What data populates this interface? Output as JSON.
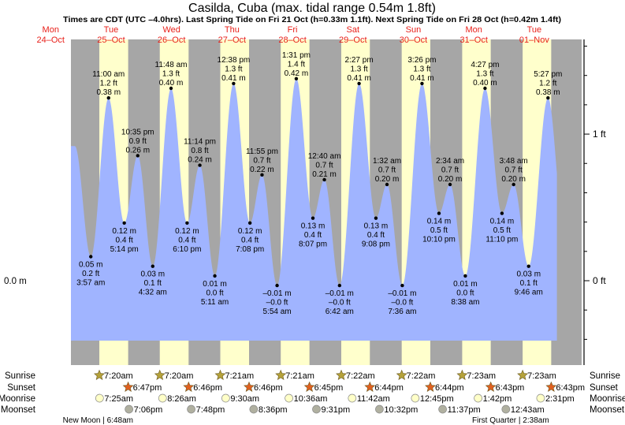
{
  "title": "Casilda, Cuba (max. tidal range 0.54m 1.8ft)",
  "subtitle": "Times are CDT (UTC –4.0hrs). Last Spring Tide on Fri 21 Oct (h=0.33m 1.1ft). Next Spring Tide on Fri 28 Oct (h=0.42m 1.4ft)",
  "colors": {
    "night": "#a6a6a6",
    "day": "#ffffcc",
    "water": "#a0b4ff",
    "day_label": "#e8201a",
    "sunrise": "#b5a23a",
    "sunset": "#e06020",
    "moonrise": "#ffffc8",
    "moonset": "#b0b0a0"
  },
  "days": [
    {
      "dow": "Mon",
      "date": "24–Oct"
    },
    {
      "dow": "Tue",
      "date": "25–Oct"
    },
    {
      "dow": "Wed",
      "date": "26–Oct"
    },
    {
      "dow": "Thu",
      "date": "27–Oct"
    },
    {
      "dow": "Fri",
      "date": "28–Oct"
    },
    {
      "dow": "Sat",
      "date": "29–Oct"
    },
    {
      "dow": "Sun",
      "date": "30–Oct"
    },
    {
      "dow": "Mon",
      "date": "31–Oct"
    },
    {
      "dow": "Tue",
      "date": "01–Nov"
    }
  ],
  "chart_data": {
    "type": "area",
    "x_unit": "hours since Mon 24-Oct 00:00 CDT",
    "xlim": [
      20.06,
      213
    ],
    "left_axis_label": "0.0 m",
    "right_axis": {
      "labels": [
        "0 ft",
        "1 ft"
      ],
      "values_ft": [
        0,
        1
      ],
      "minor_step_ft": 0.2
    },
    "events": [
      {
        "type": "high",
        "h": 21.6,
        "v": 0.28,
        "time": "",
        "ft": "",
        "m": ""
      },
      {
        "type": "low",
        "h": 27.95,
        "v": 0.05,
        "time": "3:57 am",
        "ft": "0.2 ft",
        "m": "0.05 m"
      },
      {
        "type": "high",
        "h": 35.0,
        "v": 0.38,
        "time": "11:00 am",
        "ft": "1.2 ft",
        "m": "0.38 m"
      },
      {
        "type": "low",
        "h": 41.23,
        "v": 0.12,
        "time": "5:14 pm",
        "ft": "0.4 ft",
        "m": "0.12 m"
      },
      {
        "type": "high",
        "h": 46.58,
        "v": 0.26,
        "time": "10:35 pm",
        "ft": "0.9 ft",
        "m": "0.26 m"
      },
      {
        "type": "low",
        "h": 52.53,
        "v": 0.03,
        "time": "4:32 am",
        "ft": "0.1 ft",
        "m": "0.03 m"
      },
      {
        "type": "high",
        "h": 59.8,
        "v": 0.4,
        "time": "11:48 am",
        "ft": "1.3 ft",
        "m": "0.40 m"
      },
      {
        "type": "low",
        "h": 66.17,
        "v": 0.12,
        "time": "6:10 pm",
        "ft": "0.4 ft",
        "m": "0.12 m"
      },
      {
        "type": "high",
        "h": 71.23,
        "v": 0.24,
        "time": "11:14 pm",
        "ft": "0.8 ft",
        "m": "0.24 m"
      },
      {
        "type": "low",
        "h": 77.18,
        "v": 0.01,
        "time": "5:11 am",
        "ft": "0.0 ft",
        "m": "0.01 m"
      },
      {
        "type": "high",
        "h": 84.63,
        "v": 0.41,
        "time": "12:38 pm",
        "ft": "1.3 ft",
        "m": "0.41 m"
      },
      {
        "type": "low",
        "h": 91.13,
        "v": 0.12,
        "time": "7:08 pm",
        "ft": "0.4 ft",
        "m": "0.12 m"
      },
      {
        "type": "high",
        "h": 95.92,
        "v": 0.22,
        "time": "11:55 pm",
        "ft": "0.7 ft",
        "m": "0.22 m"
      },
      {
        "type": "low",
        "h": 101.9,
        "v": -0.01,
        "time": "5:54 am",
        "ft": "–0.0 ft",
        "m": "–0.01 m"
      },
      {
        "type": "high",
        "h": 109.52,
        "v": 0.42,
        "time": "1:31 pm",
        "ft": "1.4 ft",
        "m": "0.42 m"
      },
      {
        "type": "low",
        "h": 116.12,
        "v": 0.13,
        "time": "8:07 pm",
        "ft": "0.4 ft",
        "m": "0.13 m"
      },
      {
        "type": "high",
        "h": 120.67,
        "v": 0.21,
        "time": "12:40 am",
        "ft": "0.7 ft",
        "m": "0.21 m"
      },
      {
        "type": "low",
        "h": 126.7,
        "v": -0.01,
        "time": "6:42 am",
        "ft": "–0.0 ft",
        "m": "–0.01 m"
      },
      {
        "type": "high",
        "h": 134.45,
        "v": 0.41,
        "time": "2:27 pm",
        "ft": "1.3 ft",
        "m": "0.41 m"
      },
      {
        "type": "low",
        "h": 141.13,
        "v": 0.13,
        "time": "9:08 pm",
        "ft": "0.4 ft",
        "m": "0.13 m"
      },
      {
        "type": "high",
        "h": 145.53,
        "v": 0.2,
        "time": "1:32 am",
        "ft": "0.7 ft",
        "m": "0.20 m"
      },
      {
        "type": "low",
        "h": 151.6,
        "v": -0.01,
        "time": "7:36 am",
        "ft": "–0.0 ft",
        "m": "–0.01 m"
      },
      {
        "type": "high",
        "h": 159.43,
        "v": 0.41,
        "time": "3:26 pm",
        "ft": "1.3 ft",
        "m": "0.41 m"
      },
      {
        "type": "low",
        "h": 166.17,
        "v": 0.14,
        "time": "10:10 pm",
        "ft": "0.5 ft",
        "m": "0.14 m"
      },
      {
        "type": "high",
        "h": 170.57,
        "v": 0.2,
        "time": "2:34 am",
        "ft": "0.7 ft",
        "m": "0.20 m"
      },
      {
        "type": "low",
        "h": 176.63,
        "v": 0.01,
        "time": "8:38 am",
        "ft": "0.0 ft",
        "m": "0.01 m"
      },
      {
        "type": "high",
        "h": 184.45,
        "v": 0.4,
        "time": "4:27 pm",
        "ft": "1.3 ft",
        "m": "0.40 m"
      },
      {
        "type": "low",
        "h": 191.17,
        "v": 0.14,
        "time": "11:10 pm",
        "ft": "0.5 ft",
        "m": "0.14 m"
      },
      {
        "type": "high",
        "h": 195.8,
        "v": 0.2,
        "time": "3:48 am",
        "ft": "0.7 ft",
        "m": "0.20 m"
      },
      {
        "type": "low",
        "h": 201.77,
        "v": 0.03,
        "time": "9:46 am",
        "ft": "0.1 ft",
        "m": "0.03 m"
      },
      {
        "type": "high",
        "h": 209.45,
        "v": 0.38,
        "time": "5:27 pm",
        "ft": "1.2 ft",
        "m": "0.38 m"
      },
      {
        "type": "low",
        "h": 215.7,
        "v": 0.12,
        "time": "",
        "ft": "",
        "m": ""
      }
    ]
  },
  "rows": {
    "labels": [
      "Sunrise",
      "Sunset",
      "Moonrise",
      "Moonset"
    ],
    "sunrise": [
      {
        "h": 31.33,
        "text": "7:20am"
      },
      {
        "h": 55.33,
        "text": "7:20am"
      },
      {
        "h": 79.35,
        "text": "7:21am"
      },
      {
        "h": 103.35,
        "text": "7:21am"
      },
      {
        "h": 127.37,
        "text": "7:22am"
      },
      {
        "h": 151.37,
        "text": "7:22am"
      },
      {
        "h": 175.38,
        "text": "7:23am"
      },
      {
        "h": 199.38,
        "text": "7:23am"
      }
    ],
    "sunset": [
      {
        "h": 42.78,
        "text": "6:47pm"
      },
      {
        "h": 66.77,
        "text": "6:46pm"
      },
      {
        "h": 90.77,
        "text": "6:46pm"
      },
      {
        "h": 114.75,
        "text": "6:45pm"
      },
      {
        "h": 138.73,
        "text": "6:44pm"
      },
      {
        "h": 162.73,
        "text": "6:44pm"
      },
      {
        "h": 186.72,
        "text": "6:43pm"
      },
      {
        "h": 210.72,
        "text": "6:43pm"
      }
    ],
    "moonrise": [
      {
        "h": 31.42,
        "text": "7:25am"
      },
      {
        "h": 56.43,
        "text": "8:26am"
      },
      {
        "h": 81.5,
        "text": "9:30am"
      },
      {
        "h": 106.6,
        "text": "10:36am"
      },
      {
        "h": 131.7,
        "text": "11:42am"
      },
      {
        "h": 156.75,
        "text": "12:45pm"
      },
      {
        "h": 181.7,
        "text": "1:42pm"
      },
      {
        "h": 206.52,
        "text": "2:31pm"
      }
    ],
    "moonset": [
      {
        "h": 43.1,
        "text": "7:06pm"
      },
      {
        "h": 67.8,
        "text": "7:48pm"
      },
      {
        "h": 92.6,
        "text": "8:36pm"
      },
      {
        "h": 117.52,
        "text": "9:31pm"
      },
      {
        "h": 142.53,
        "text": "10:32pm"
      },
      {
        "h": 167.62,
        "text": "11:37pm"
      },
      {
        "h": 192.72,
        "text": "12:43am"
      }
    ],
    "phases": [
      {
        "h": 30.8,
        "text": "New Moon | 6:48am"
      },
      {
        "h": 194.6,
        "text": "First Quarter | 2:38am"
      }
    ]
  }
}
